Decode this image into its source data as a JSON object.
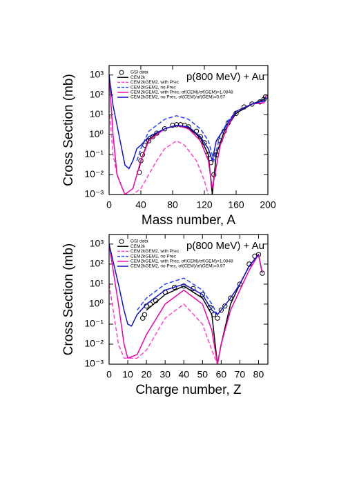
{
  "chart_data": [
    {
      "type": "line",
      "log_y": true,
      "annotation": "p(800 MeV) + Au",
      "x_label": "Mass number, A",
      "y_label": "Cross Section (mb)",
      "xlim": [
        0,
        200
      ],
      "ylim": [
        0.001,
        3000
      ],
      "xticks": [
        0,
        40,
        80,
        120,
        160,
        200
      ],
      "yticks": [
        {
          "value": 0.001,
          "label": "10⁻³"
        },
        {
          "value": 0.01,
          "label": "10⁻²"
        },
        {
          "value": 0.1,
          "label": "10⁻¹"
        },
        {
          "value": 1,
          "label": "10⁰"
        },
        {
          "value": 10,
          "label": "10¹"
        },
        {
          "value": 100,
          "label": "10²"
        },
        {
          "value": 1000,
          "label": "10³"
        }
      ],
      "series": [
        {
          "name": "GSI data",
          "color": "#000000",
          "marker": "circle",
          "x": [
            38,
            40,
            42,
            45,
            50,
            55,
            60,
            70,
            80,
            85,
            90,
            95,
            100,
            110,
            115,
            120,
            125,
            128,
            132,
            135,
            140,
            145,
            150,
            160,
            170,
            180,
            190,
            195,
            197
          ],
          "values": [
            0.013,
            0.05,
            0.1,
            0.3,
            0.5,
            0.8,
            1.2,
            2,
            3,
            3.2,
            3.2,
            3,
            2.5,
            1.5,
            0.8,
            0.4,
            0.1,
            0.04,
            0.01,
            0.1,
            0.5,
            1.5,
            4,
            12,
            25,
            35,
            45,
            60,
            80
          ]
        },
        {
          "name": "CEM2k",
          "color": "#000000",
          "dash": false,
          "x": [
            38,
            40,
            50,
            60,
            70,
            85,
            100,
            115,
            125,
            130,
            135,
            145,
            160,
            180,
            195,
            197
          ],
          "values": [
            0.02,
            0.05,
            0.6,
            1.2,
            2,
            3,
            2.2,
            0.7,
            0.1,
            0.001,
            0.1,
            1.5,
            12,
            35,
            60,
            80
          ]
        },
        {
          "name": "CEM2kGEM2, with Prec",
          "color": "#ff44cc",
          "dash": true,
          "x": [
            1,
            5,
            10,
            20,
            30,
            40,
            50,
            60,
            70,
            85,
            95,
            110,
            120,
            125
          ],
          "values": [
            10,
            0.1,
            0.01,
            0.001,
            0.001,
            0.002,
            0.01,
            0.05,
            0.2,
            0.5,
            0.3,
            0.05,
            0.005,
            0.001
          ]
        },
        {
          "name": "CEM2kGEM2, no Prec",
          "color": "#2244ff",
          "dash": true,
          "x": [
            35,
            40,
            50,
            60,
            70,
            85,
            100,
            115,
            125,
            132,
            140,
            150,
            160,
            180,
            195
          ],
          "values": [
            0.05,
            0.2,
            1.5,
            3,
            6,
            9,
            6,
            2,
            0.5,
            0.05,
            1,
            5,
            15,
            35,
            55
          ]
        },
        {
          "name": "CEM2kGEM2, with Prec, σf(CEM)/σf(GEM)=1.0848",
          "color": "#ee00aa",
          "dash": false,
          "x": [
            0,
            5,
            10,
            15,
            20,
            30,
            40,
            50,
            70,
            85,
            100,
            115,
            125,
            130,
            140,
            150,
            160,
            180,
            195,
            198
          ],
          "values": [
            1000,
            1,
            0.01,
            0.003,
            0.001,
            0.002,
            0.05,
            0.5,
            2,
            3,
            2,
            0.5,
            0.05,
            0.002,
            0.3,
            3,
            15,
            35,
            40,
            100
          ]
        },
        {
          "name": "CEM2kGEM2, no Prec, σf(CEM)/σf(GEM)=0.97",
          "color": "#1111cc",
          "dash": false,
          "x": [
            0,
            5,
            10,
            15,
            20,
            25,
            30,
            35,
            40,
            50,
            70,
            85,
            100,
            115,
            125,
            130,
            135,
            150,
            160,
            180,
            195,
            198
          ],
          "values": [
            1000,
            30,
            3,
            0.3,
            0.03,
            0.02,
            0.05,
            0.2,
            0.3,
            0.8,
            2,
            3,
            2.5,
            0.8,
            0.2,
            0.05,
            0.5,
            4,
            15,
            35,
            50,
            80
          ]
        }
      ]
    },
    {
      "type": "line",
      "log_y": true,
      "annotation": "p(800 MeV) + Au",
      "x_label": "Charge number, Z",
      "y_label": "Cross Section (mb)",
      "xlim": [
        0,
        85
      ],
      "ylim": [
        0.001,
        3000
      ],
      "xticks": [
        0,
        10,
        20,
        30,
        40,
        50,
        60,
        70,
        80
      ],
      "yticks": [
        {
          "value": 0.001,
          "label": "10⁻³"
        },
        {
          "value": 0.01,
          "label": "10⁻²"
        },
        {
          "value": 0.1,
          "label": "10⁻¹"
        },
        {
          "value": 1,
          "label": "10⁰"
        },
        {
          "value": 10,
          "label": "10¹"
        },
        {
          "value": 100,
          "label": "10²"
        },
        {
          "value": 1000,
          "label": "10³"
        }
      ],
      "series": [
        {
          "name": "GSI data",
          "color": "#000000",
          "marker": "circle",
          "x": [
            18,
            19,
            20,
            22,
            25,
            30,
            35,
            40,
            45,
            50,
            54,
            56,
            58,
            60,
            62,
            65,
            70,
            75,
            78,
            80,
            82
          ],
          "values": [
            0.2,
            0.3,
            0.8,
            1,
            1.5,
            4,
            7,
            8,
            6,
            3,
            0.7,
            0.3,
            0.2,
            0.5,
            0.8,
            2,
            10,
            100,
            250,
            300,
            35
          ]
        },
        {
          "name": "CEM2k",
          "color": "#000000",
          "dash": false,
          "x": [
            20,
            30,
            40,
            50,
            55,
            58,
            60,
            65,
            70,
            75,
            80,
            82
          ],
          "values": [
            0.5,
            3,
            8,
            2,
            0.3,
            0.001,
            0.01,
            1,
            10,
            80,
            300,
            35
          ]
        },
        {
          "name": "CEM2kGEM2, with Prec",
          "color": "#ff44cc",
          "dash": true,
          "x": [
            0,
            5,
            8,
            15,
            20,
            30,
            40,
            50,
            55,
            58
          ],
          "values": [
            10,
            0.01,
            0.002,
            0.002,
            0.005,
            0.2,
            1,
            0.1,
            0.005,
            0.001
          ]
        },
        {
          "name": "CEM2kGEM2, no Prec",
          "color": "#2244ff",
          "dash": true,
          "x": [
            15,
            20,
            30,
            40,
            50,
            55,
            58
          ],
          "values": [
            0.5,
            2,
            10,
            20,
            5,
            1,
            0.3
          ]
        },
        {
          "name": "CEM2kGEM2, with Prec, σf(CEM)/σf(GEM)=1.0848",
          "color": "#ee00aa",
          "dash": false,
          "x": [
            0,
            5,
            8,
            10,
            15,
            20,
            30,
            40,
            50,
            55,
            58,
            60,
            65,
            70,
            75,
            80,
            82
          ],
          "values": [
            1000,
            1,
            0.01,
            0.002,
            0.003,
            0.03,
            1,
            5,
            1,
            0.05,
            0.001,
            0.01,
            0.5,
            5,
            50,
            300,
            35
          ]
        },
        {
          "name": "CEM2kGEM2, no Prec, σf(CEM)/σf(GEM)=0.97",
          "color": "#1111cc",
          "dash": false,
          "x": [
            0,
            5,
            8,
            10,
            12,
            15,
            20,
            30,
            40,
            50,
            55,
            58,
            60,
            65,
            70,
            75,
            80
          ],
          "values": [
            1000,
            10,
            0.5,
            0.1,
            0.08,
            0.3,
            1,
            5,
            10,
            3,
            0.5,
            0.3,
            0.5,
            2,
            10,
            80,
            300
          ]
        }
      ]
    }
  ]
}
